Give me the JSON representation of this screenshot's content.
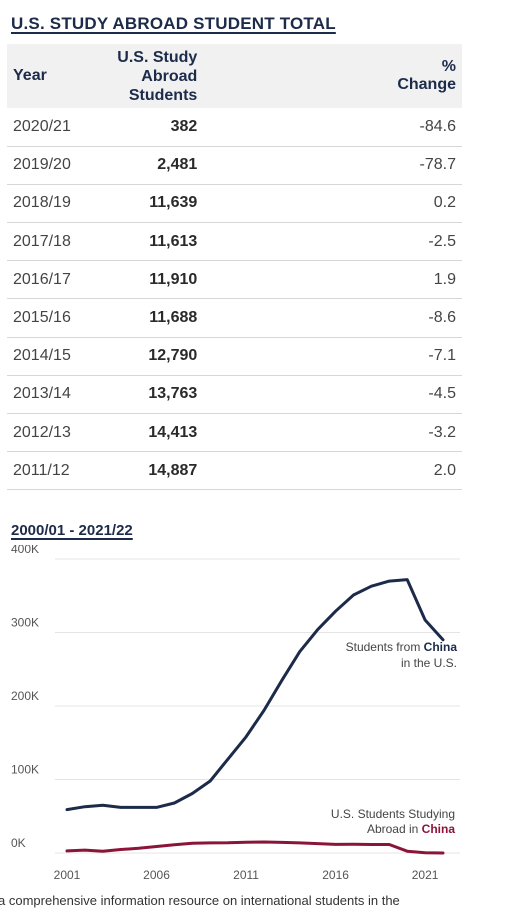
{
  "table_title": "U.S. STUDY ABROAD STUDENT TOTAL",
  "table": {
    "headers": [
      "Year",
      "U.S. Study Abroad Students",
      "% Change"
    ],
    "header_student_lines": [
      "U.S. Study Abroad",
      "Students"
    ],
    "rows": [
      {
        "year": "2020/21",
        "students": "382",
        "change": "-84.6"
      },
      {
        "year": "2019/20",
        "students": "2,481",
        "change": "-78.7"
      },
      {
        "year": "2018/19",
        "students": "11,639",
        "change": "0.2"
      },
      {
        "year": "2017/18",
        "students": "11,613",
        "change": "-2.5"
      },
      {
        "year": "2016/17",
        "students": "11,910",
        "change": "1.9"
      },
      {
        "year": "2015/16",
        "students": "11,688",
        "change": "-8.6"
      },
      {
        "year": "2014/15",
        "students": "12,790",
        "change": "-7.1"
      },
      {
        "year": "2013/14",
        "students": "13,763",
        "change": "-4.5"
      },
      {
        "year": "2012/13",
        "students": "14,413",
        "change": "-3.2"
      },
      {
        "year": "2011/12",
        "students": "14,887",
        "change": "2.0"
      }
    ]
  },
  "chart_title": "2000/01 - 2021/22",
  "chart_data": {
    "type": "line",
    "title": "2000/01 - 2021/22",
    "xlabel": "",
    "ylabel": "",
    "x": [
      2001,
      2002,
      2003,
      2004,
      2005,
      2006,
      2007,
      2008,
      2009,
      2010,
      2011,
      2012,
      2013,
      2014,
      2015,
      2016,
      2017,
      2018,
      2019,
      2020,
      2021,
      2022
    ],
    "xlim": [
      2001,
      2022
    ],
    "ylim": [
      0,
      400000
    ],
    "x_ticks": [
      2001,
      2006,
      2011,
      2016,
      2021
    ],
    "x_tick_labels": [
      "2001",
      "2006",
      "2011",
      "2016",
      "2021"
    ],
    "y_ticks": [
      0,
      100000,
      200000,
      300000,
      400000
    ],
    "y_tick_labels": [
      "0K",
      "100K",
      "200K",
      "300K",
      "400K"
    ],
    "grid": "horizontal",
    "series": [
      {
        "name": "Students from China in the U.S.",
        "color": "#1c2b4a",
        "values": [
          59000,
          63000,
          65000,
          62000,
          62000,
          62000,
          68000,
          81000,
          98000,
          128000,
          158000,
          194000,
          235000,
          274000,
          304000,
          329000,
          351000,
          363000,
          370000,
          372000,
          317000,
          290000
        ]
      },
      {
        "name": "U.S. Students Studying Abroad in China",
        "color": "#8b1538",
        "values": [
          2900,
          3900,
          2500,
          4700,
          6400,
          8800,
          11100,
          13200,
          13700,
          13900,
          14600,
          14900,
          14400,
          13800,
          12800,
          11700,
          11900,
          11600,
          11600,
          2500,
          400,
          0
        ]
      }
    ],
    "annotations": [
      {
        "series": 0,
        "lines": [
          [
            "Students from ",
            "China"
          ],
          [
            "in the U.S."
          ]
        ]
      },
      {
        "series": 1,
        "lines": [
          [
            "U.S. Students Studying"
          ],
          [
            "Abroad in ",
            "China"
          ]
        ]
      }
    ]
  },
  "footer_text": "a comprehensive information resource on international students in the"
}
